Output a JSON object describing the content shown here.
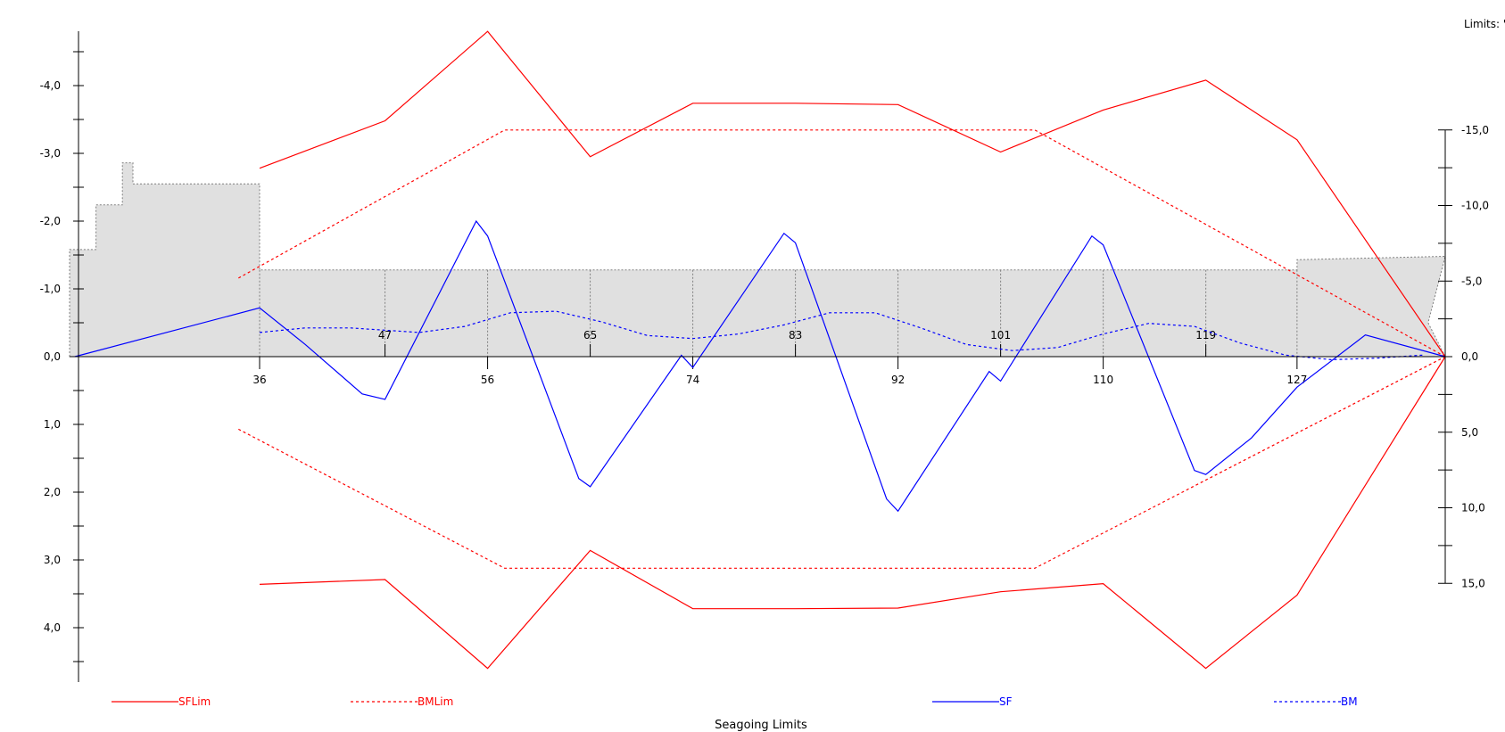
{
  "header": {
    "limits_label": "Limits: '"
  },
  "footer": {
    "title": "Seagoing Limits"
  },
  "chart_data": {
    "type": "line",
    "frames": [
      36,
      47,
      56,
      65,
      74,
      83,
      92,
      101,
      110,
      119,
      127
    ],
    "left_axis": {
      "ylim": [
        -4.8,
        4.8
      ],
      "inverted": true,
      "ticks": [
        -4.0,
        -3.0,
        -2.0,
        -1.0,
        0.0,
        1.0,
        2.0,
        3.0,
        4.0
      ],
      "tick_labels": [
        "-4,0",
        "-3,0",
        "-2,0",
        "-1,0",
        "0,0",
        "1,0",
        "2,0",
        "3,0",
        "4,0"
      ]
    },
    "right_axis": {
      "ylim": [
        -15.0,
        15.0
      ],
      "inverted": true,
      "ticks": [
        -15.0,
        -10.0,
        -5.0,
        0.0,
        5.0,
        10.0,
        15.0
      ],
      "tick_labels": [
        "-15,0",
        "-10,0",
        "-5,0",
        "0,0",
        "5,0",
        "10,0",
        "15,0"
      ]
    },
    "legend": {
      "placement": "bottom",
      "items": [
        {
          "name": "SFLim",
          "color": "#ff0000",
          "dash": "solid"
        },
        {
          "name": "BMLim",
          "color": "#ff0000",
          "dash": "dashed"
        },
        {
          "name": "SF",
          "color": "#0000ff",
          "dash": "solid"
        },
        {
          "name": "BM",
          "color": "#0000ff",
          "dash": "dashed"
        }
      ]
    },
    "series": [
      {
        "name": "SFLim",
        "axis": "left",
        "color": "#ff0000",
        "dash": "solid",
        "x": [
          36,
          47,
          56,
          65,
          74,
          83,
          92,
          101,
          110,
          119,
          127,
          140
        ],
        "y": [
          -2.78,
          -3.48,
          -4.8,
          -2.95,
          -3.74,
          -3.74,
          -3.72,
          -3.02,
          -3.64,
          -4.08,
          -3.2,
          0.0
        ]
      },
      {
        "name": "SFLim",
        "axis": "left",
        "color": "#ff0000",
        "dash": "solid",
        "x": [
          36,
          47,
          56,
          65,
          74,
          83,
          92,
          101,
          110,
          119,
          127,
          140
        ],
        "y": [
          3.36,
          3.29,
          4.6,
          2.86,
          3.72,
          3.72,
          3.71,
          3.47,
          3.35,
          4.6,
          3.52,
          0.0
        ]
      },
      {
        "name": "BMLim",
        "axis": "right",
        "color": "#ff0000",
        "dash": "dashed",
        "x": [
          32,
          57.5,
          104,
          140
        ],
        "y": [
          -5.2,
          -15.0,
          -15.0,
          0.0
        ]
      },
      {
        "name": "BMLim",
        "axis": "right",
        "color": "#ff0000",
        "dash": "dashed",
        "x": [
          32,
          57.5,
          104,
          140
        ],
        "y": [
          4.8,
          14.0,
          14.0,
          0.0
        ]
      },
      {
        "name": "SF",
        "axis": "left",
        "color": "#0000ff",
        "dash": "solid",
        "x": [
          1,
          36,
          40,
          45,
          47,
          55,
          56,
          64,
          65,
          73,
          74,
          82,
          83,
          91,
          92,
          100,
          101,
          109,
          110,
          118,
          119,
          123,
          127,
          133,
          140
        ],
        "y": [
          0.0,
          -0.72,
          -0.18,
          0.55,
          0.63,
          -2.0,
          -1.78,
          1.8,
          1.92,
          -0.02,
          0.16,
          -1.82,
          -1.68,
          2.1,
          2.28,
          0.22,
          0.36,
          -1.78,
          -1.65,
          1.68,
          1.74,
          1.2,
          0.45,
          -0.32,
          0.0
        ]
      },
      {
        "name": "BM",
        "axis": "right",
        "color": "#0000ff",
        "dash": "dashed",
        "x": [
          36,
          40,
          44,
          50,
          54,
          58,
          62,
          66,
          70,
          74,
          78,
          82,
          86,
          90,
          94,
          98,
          102,
          106,
          110,
          114,
          118,
          122,
          126,
          130,
          134,
          138
        ],
        "y": [
          -1.6,
          -1.9,
          -1.9,
          -1.6,
          -2.0,
          -2.9,
          -3.0,
          -2.3,
          -1.4,
          -1.2,
          -1.5,
          -2.1,
          -2.9,
          -2.9,
          -1.9,
          -0.8,
          -0.4,
          -0.6,
          -1.5,
          -2.2,
          -2.0,
          -0.9,
          -0.1,
          0.2,
          0.1,
          -0.1
        ]
      }
    ],
    "ship": {
      "axis": "left",
      "outline_x": [
        0,
        0,
        5,
        5,
        10,
        10,
        12,
        12,
        36,
        36,
        127,
        127,
        140,
        138.5,
        140
      ],
      "outline_y": [
        0.0,
        -1.58,
        -1.58,
        -2.24,
        -2.24,
        -2.86,
        -2.86,
        -2.55,
        -2.55,
        -1.28,
        -1.28,
        -1.43,
        -1.48,
        -0.5,
        0.0
      ],
      "fill": "#e0e0e0"
    }
  }
}
